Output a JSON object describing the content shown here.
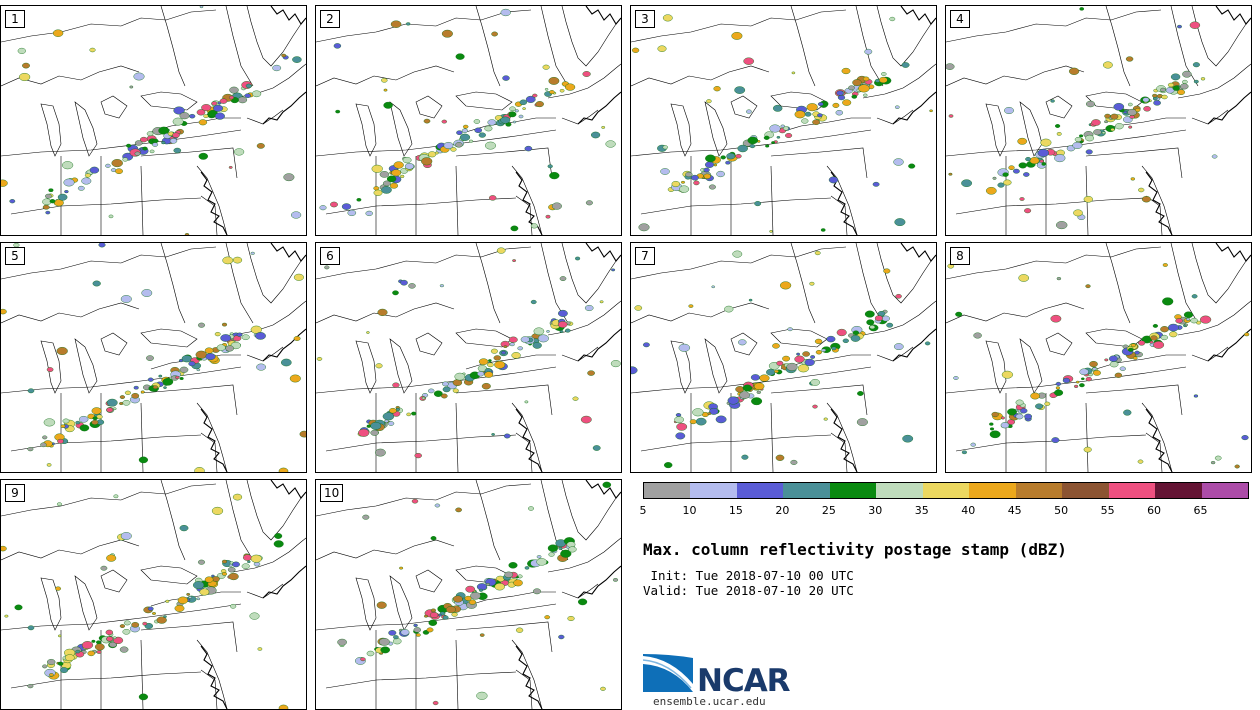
{
  "panels": [
    {
      "label": "1",
      "seed": 11,
      "shift": 0
    },
    {
      "label": "2",
      "seed": 23,
      "shift": -6
    },
    {
      "label": "3",
      "seed": 37,
      "shift": -12
    },
    {
      "label": "4",
      "seed": 41,
      "shift": -14
    },
    {
      "label": "5",
      "seed": 53,
      "shift": 6
    },
    {
      "label": "6",
      "seed": 67,
      "shift": -4
    },
    {
      "label": "7",
      "seed": 71,
      "shift": -8
    },
    {
      "label": "8",
      "seed": 83,
      "shift": -10
    },
    {
      "label": "9",
      "seed": 97,
      "shift": -2
    },
    {
      "label": "10",
      "seed": 103,
      "shift": -16
    }
  ],
  "colorbar": {
    "ticks": [
      "5",
      "10",
      "15",
      "20",
      "25",
      "30",
      "35",
      "40",
      "45",
      "50",
      "55",
      "60",
      "65"
    ],
    "colors": [
      "#a0a0a0",
      "#b4bcee",
      "#5a5cd6",
      "#4a9098",
      "#0a8a10",
      "#bfdcbc",
      "#ecd860",
      "#eca81c",
      "#b87c2c",
      "#8c5432",
      "#ee5080",
      "#641434",
      "#ac4ca8"
    ]
  },
  "title": "Max. column reflectivity postage stamp (dBZ)",
  "init_line": " Init: Tue 2018-07-10 00 UTC",
  "valid_line": "Valid: Tue 2018-07-10 20 UTC",
  "logo": {
    "brand": "NCAR",
    "url": "ensemble.ucar.edu"
  }
}
